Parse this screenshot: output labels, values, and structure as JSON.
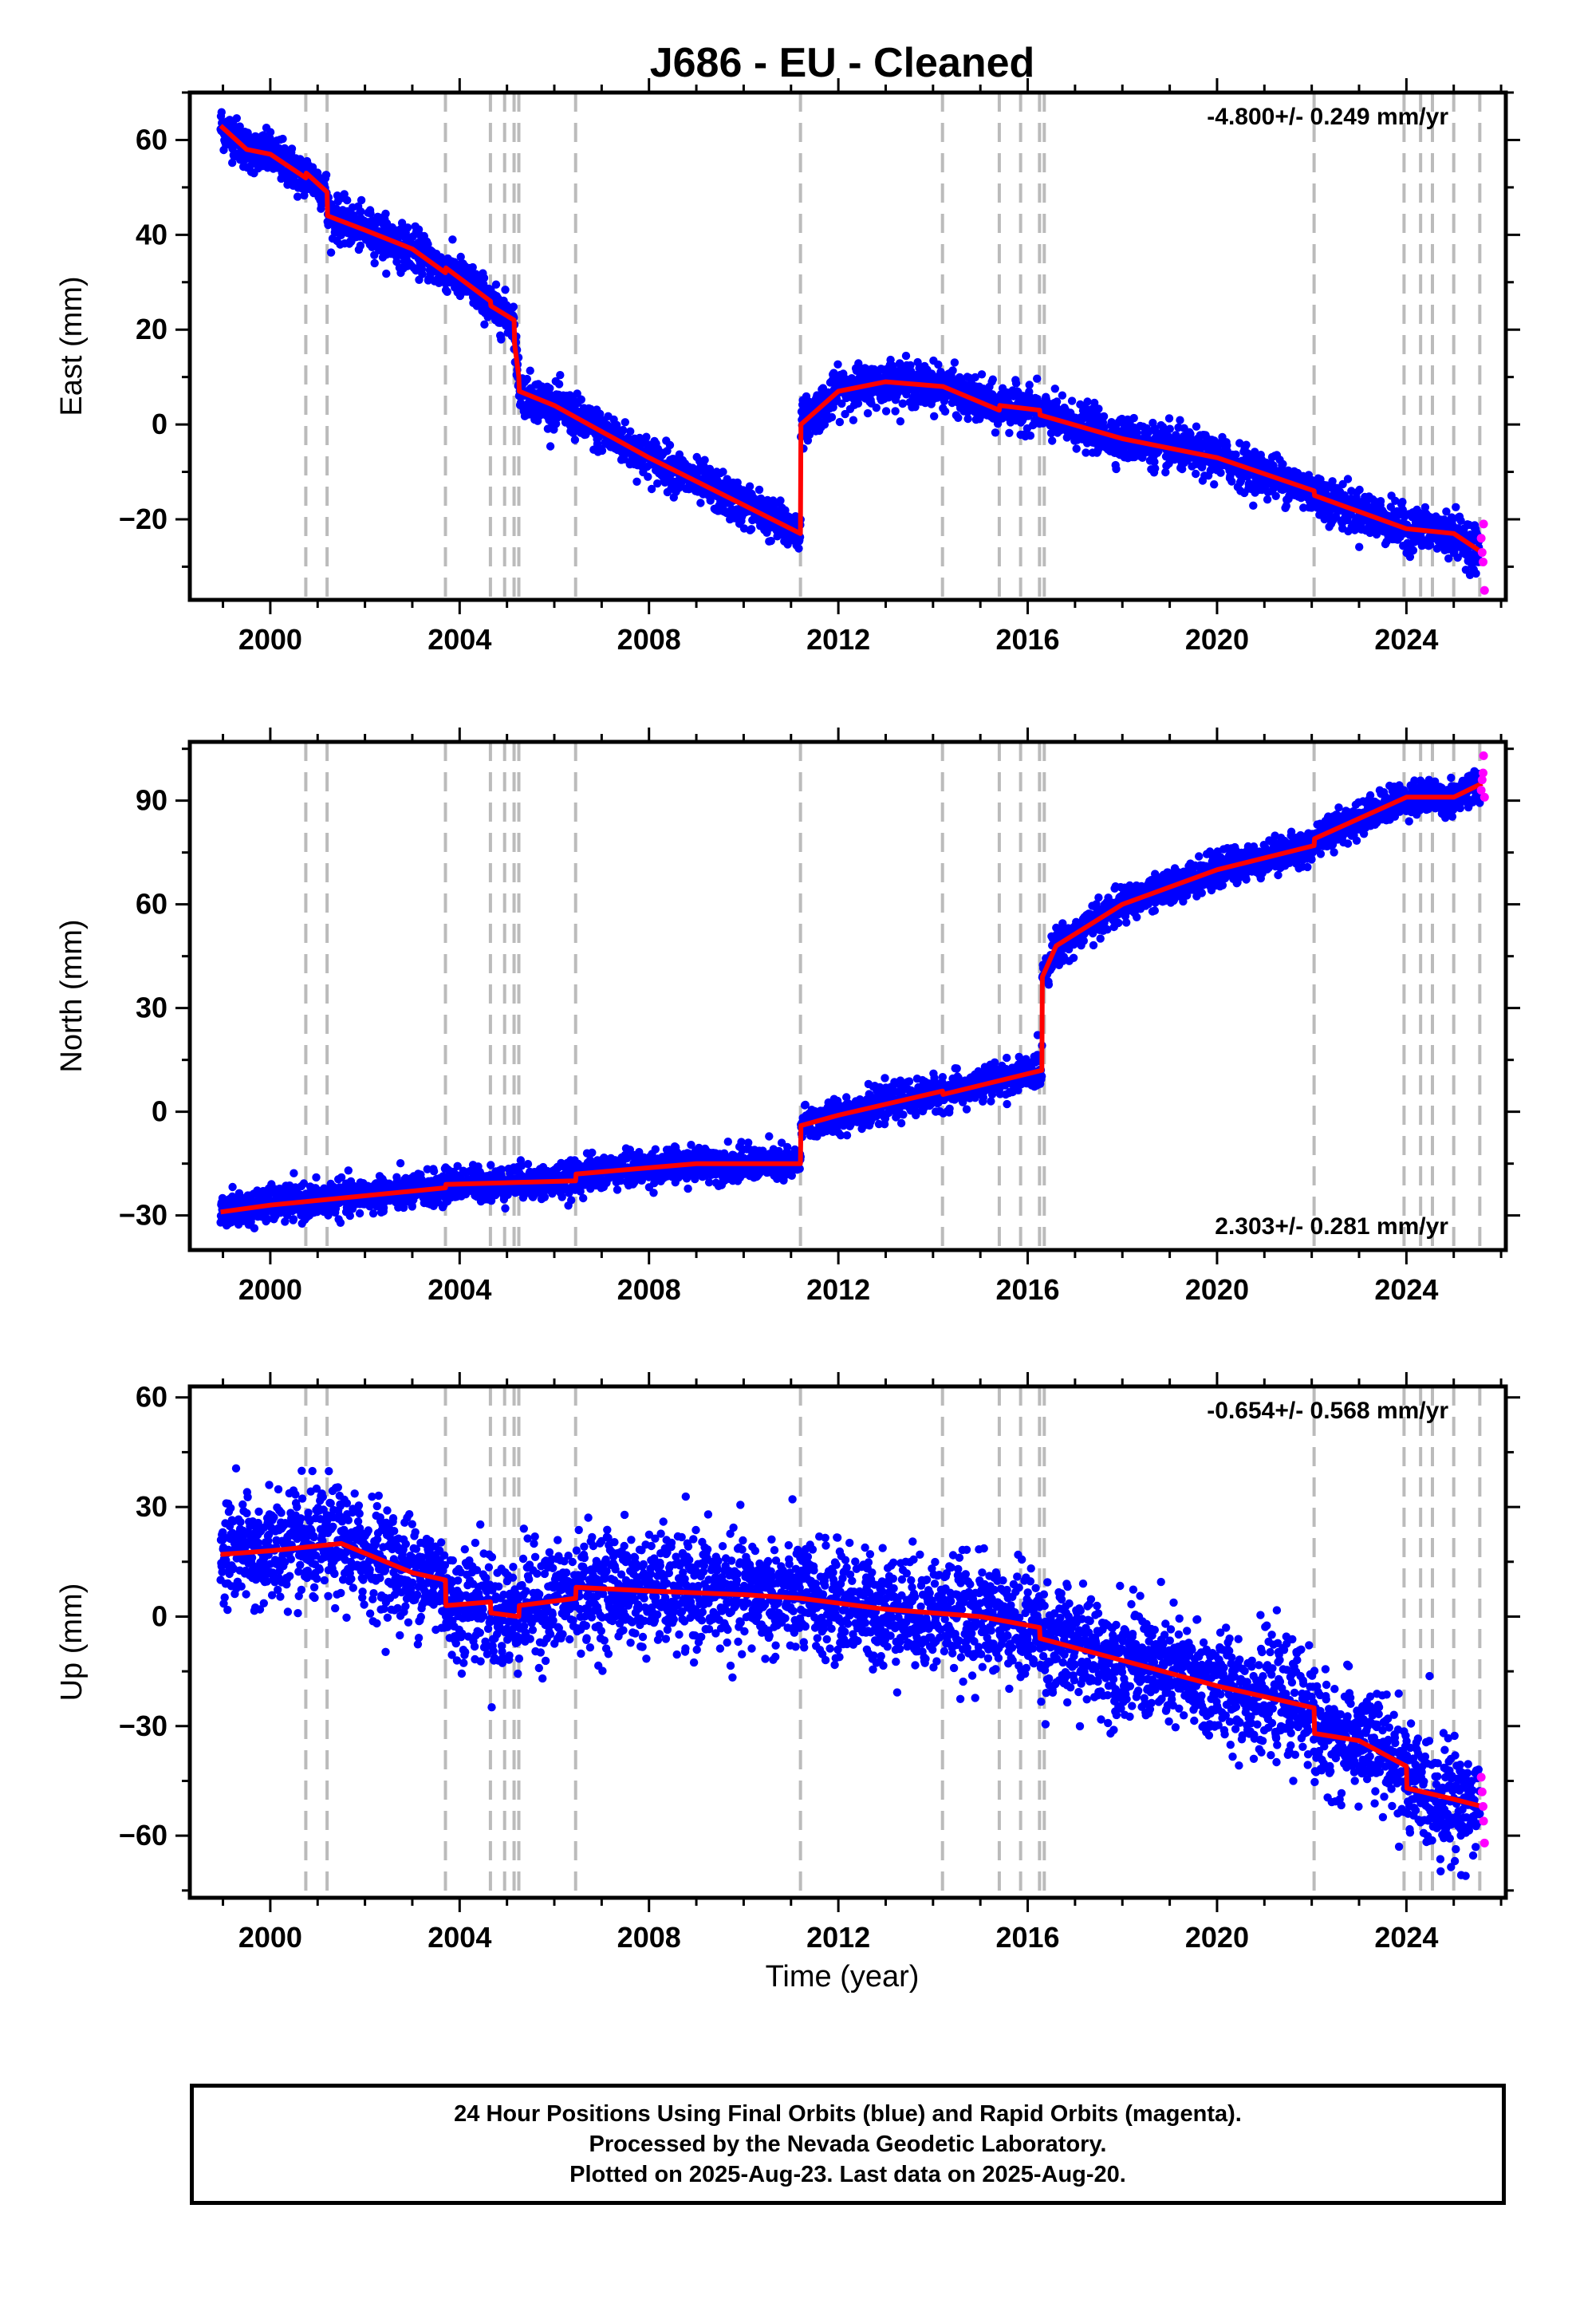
{
  "chart_data": {
    "type": "scatter",
    "title": "J686  - EU - Cleaned",
    "xlabel": "Time (year)",
    "xlim": [
      1998.3,
      2026.1
    ],
    "xticks": [
      2000,
      2004,
      2008,
      2012,
      2016,
      2020,
      2024
    ],
    "xtick_labels": [
      "2000",
      "2004",
      "2008",
      "2012",
      "2016",
      "2020",
      "2024"
    ],
    "grid": false,
    "colors": {
      "final_orbits": "#0000ff",
      "rapid_orbits": "#ff00ff",
      "model": "#ff0000",
      "event_lines": "#bbbbbb"
    },
    "event_lines": [
      2000.75,
      2001.2,
      2003.7,
      2004.65,
      2004.95,
      2005.15,
      2005.25,
      2006.45,
      2011.2,
      2014.2,
      2015.4,
      2015.85,
      2016.25,
      2016.35,
      2022.05,
      2023.95,
      2024.3,
      2024.55,
      2025.0,
      2025.55
    ],
    "panels": [
      {
        "id": "east",
        "ylabel": "East (mm)",
        "ylim": [
          -37,
          70
        ],
        "yticks": [
          60,
          40,
          20,
          0,
          -20
        ],
        "ytick_labels": [
          "60",
          "40",
          "20",
          "0",
          "−20"
        ],
        "rate_label": "-4.800+/- 0.249 mm/yr",
        "rate_position": "top-right",
        "noise_mm": 2.2,
        "model": {
          "x": [
            1998.95,
            1999.5,
            2000.0,
            2000.75,
            2000.76,
            2001.2,
            2001.21,
            2002.0,
            2003.0,
            2003.7,
            2003.71,
            2004.65,
            2004.66,
            2005.15,
            2005.16,
            2005.25,
            2005.26,
            2006.0,
            2008.0,
            2010.0,
            2011.2,
            2011.21,
            2012.0,
            2013.0,
            2014.2,
            2014.21,
            2015.4,
            2015.41,
            2016.25,
            2016.26,
            2018.0,
            2020.0,
            2022.05,
            2022.06,
            2024.0,
            2025.0,
            2025.6
          ],
          "y": [
            63,
            58,
            57,
            52,
            53,
            49,
            44,
            41,
            37,
            32,
            33,
            26,
            25,
            22,
            17,
            10,
            7,
            4,
            -7,
            -17,
            -23,
            0,
            7,
            9,
            8,
            8,
            3,
            4,
            3,
            2,
            -3,
            -7,
            -14,
            -15,
            -22,
            -23,
            -27
          ]
        },
        "rapid": {
          "x": [
            2025.58,
            2025.6,
            2025.62,
            2025.63,
            2025.65
          ],
          "y": [
            -24,
            -27,
            -29,
            -21,
            -35
          ]
        }
      },
      {
        "id": "north",
        "ylabel": "North (mm)",
        "ylim": [
          -40,
          107
        ],
        "yticks": [
          90,
          60,
          30,
          0,
          -30
        ],
        "ytick_labels": [
          "90",
          "60",
          "30",
          "0",
          "−30"
        ],
        "rate_label": "2.303+/- 0.281 mm/yr",
        "rate_position": "bottom-right",
        "noise_mm": 2.4,
        "model": {
          "x": [
            1998.95,
            2000.0,
            2003.7,
            2003.71,
            2006.45,
            2006.46,
            2009.0,
            2011.2,
            2011.21,
            2012.0,
            2014.2,
            2014.21,
            2016.3,
            2016.31,
            2016.6,
            2018.0,
            2020.0,
            2022.05,
            2022.06,
            2024.0,
            2025.0,
            2025.6
          ],
          "y": [
            -29,
            -27,
            -22,
            -21,
            -20,
            -18,
            -15,
            -15,
            -4,
            -1,
            6,
            5,
            12,
            39,
            48,
            60,
            70,
            77,
            79,
            91,
            91,
            95
          ]
        },
        "rapid": {
          "x": [
            2025.58,
            2025.6,
            2025.62,
            2025.63,
            2025.65
          ],
          "y": [
            93,
            96,
            98,
            103,
            91
          ]
        }
      },
      {
        "id": "up",
        "ylabel": "Up (mm)",
        "ylim": [
          -77,
          63
        ],
        "yticks": [
          60,
          30,
          0,
          -30,
          -60
        ],
        "ytick_labels": [
          "60",
          "30",
          "0",
          "−30",
          "−60"
        ],
        "rate_label": "-0.654+/- 0.568 mm/yr",
        "rate_position": "top-right",
        "noise_mm": 7.5,
        "model": {
          "x": [
            1998.95,
            2000.0,
            2001.5,
            2003.0,
            2003.7,
            2003.71,
            2004.65,
            2004.66,
            2005.25,
            2005.26,
            2006.45,
            2006.46,
            2008.0,
            2010.0,
            2011.2,
            2011.21,
            2013.0,
            2015.0,
            2016.25,
            2016.26,
            2018.0,
            2020.0,
            2022.05,
            2022.06,
            2023.0,
            2024.0,
            2024.01,
            2025.0,
            2025.6
          ],
          "y": [
            17,
            18,
            20,
            12,
            10,
            3,
            4,
            1,
            0,
            3,
            5,
            8,
            7,
            6,
            5,
            5,
            2,
            0,
            -3,
            -6,
            -12,
            -19,
            -25,
            -32,
            -34,
            -41,
            -47,
            -50,
            -52
          ]
        },
        "rapid": {
          "x": [
            2025.58,
            2025.6,
            2025.62,
            2025.63,
            2025.65
          ],
          "y": [
            -44,
            -48,
            -52,
            -56,
            -62
          ]
        }
      }
    ]
  },
  "footer": {
    "line1": "24 Hour Positions Using Final Orbits (blue) and Rapid Orbits (magenta).",
    "line2": "Processed by the Nevada Geodetic Laboratory.",
    "line3": "Plotted on 2025-Aug-23. Last data on 2025-Aug-20."
  }
}
